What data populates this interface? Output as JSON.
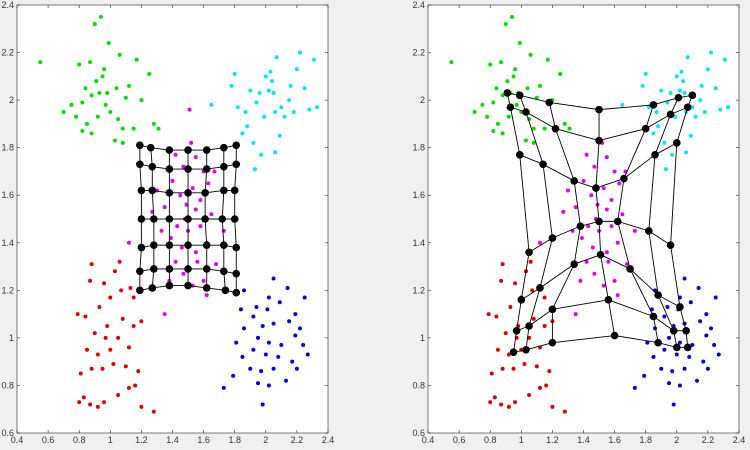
{
  "scatter_series": [
    {
      "name": "cluster-green",
      "color": "#00e000",
      "points": [
        [
          0.55,
          2.16
        ],
        [
          0.9,
          2.32
        ],
        [
          0.94,
          2.35
        ],
        [
          0.99,
          2.24
        ],
        [
          0.8,
          2.15
        ],
        [
          0.87,
          2.16
        ],
        [
          0.96,
          2.13
        ],
        [
          1.06,
          2.19
        ],
        [
          1.17,
          2.17
        ],
        [
          1.25,
          2.11
        ],
        [
          0.7,
          1.95
        ],
        [
          0.75,
          1.98
        ],
        [
          0.82,
          1.99
        ],
        [
          0.88,
          2.02
        ],
        [
          0.93,
          2.03
        ],
        [
          0.98,
          2.03
        ],
        [
          1.04,
          2.05
        ],
        [
          1.1,
          2.01
        ],
        [
          1.2,
          2.0
        ],
        [
          1.28,
          1.9
        ],
        [
          0.78,
          1.93
        ],
        [
          0.85,
          1.9
        ],
        [
          0.92,
          1.93
        ],
        [
          1.0,
          1.95
        ],
        [
          1.08,
          1.88
        ],
        [
          1.15,
          1.88
        ],
        [
          0.82,
          1.87
        ],
        [
          0.88,
          1.86
        ],
        [
          1.03,
          1.83
        ],
        [
          1.08,
          1.82
        ],
        [
          1.31,
          1.88
        ],
        [
          0.95,
          2.1
        ],
        [
          1.12,
          2.06
        ],
        [
          0.84,
          2.05
        ],
        [
          0.97,
          1.98
        ],
        [
          1.05,
          1.92
        ],
        [
          0.91,
          2.08
        ]
      ]
    },
    {
      "name": "cluster-cyan",
      "color": "#00e8f0",
      "points": [
        [
          1.65,
          1.98
        ],
        [
          1.78,
          2.06
        ],
        [
          1.8,
          2.11
        ],
        [
          1.82,
          1.97
        ],
        [
          1.85,
          1.86
        ],
        [
          1.88,
          1.89
        ],
        [
          1.9,
          2.04
        ],
        [
          1.92,
          1.82
        ],
        [
          1.93,
          1.71
        ],
        [
          1.97,
          1.77
        ],
        [
          1.96,
          2.03
        ],
        [
          2.0,
          2.1
        ],
        [
          2.02,
          2.04
        ],
        [
          2.05,
          2.03
        ],
        [
          2.06,
          1.95
        ],
        [
          2.03,
          2.12
        ],
        [
          2.07,
          2.18
        ],
        [
          2.1,
          1.97
        ],
        [
          2.12,
          1.93
        ],
        [
          2.15,
          2.0
        ],
        [
          2.18,
          1.95
        ],
        [
          2.2,
          2.13
        ],
        [
          2.22,
          2.2
        ],
        [
          2.25,
          2.05
        ],
        [
          2.28,
          1.96
        ],
        [
          2.31,
          2.17
        ],
        [
          2.33,
          1.97
        ],
        [
          2.06,
          1.78
        ],
        [
          2.09,
          1.85
        ],
        [
          1.99,
          1.93
        ],
        [
          2.16,
          2.06
        ],
        [
          1.94,
          1.99
        ],
        [
          2.04,
          2.08
        ],
        [
          1.87,
          1.95
        ]
      ]
    },
    {
      "name": "cluster-magenta",
      "color": "#e800e8",
      "points": [
        [
          1.51,
          1.96
        ],
        [
          1.12,
          1.4
        ],
        [
          1.35,
          1.1
        ],
        [
          1.62,
          1.18
        ],
        [
          1.52,
          1.82
        ],
        [
          1.42,
          1.77
        ],
        [
          1.55,
          1.76
        ],
        [
          1.47,
          1.72
        ],
        [
          1.6,
          1.7
        ],
        [
          1.67,
          1.7
        ],
        [
          1.4,
          1.66
        ],
        [
          1.53,
          1.63
        ],
        [
          1.63,
          1.65
        ],
        [
          1.3,
          1.62
        ],
        [
          1.45,
          1.6
        ],
        [
          1.58,
          1.58
        ],
        [
          1.35,
          1.55
        ],
        [
          1.48,
          1.5
        ],
        [
          1.55,
          1.54
        ],
        [
          1.65,
          1.52
        ],
        [
          1.27,
          1.53
        ],
        [
          1.43,
          1.47
        ],
        [
          1.5,
          1.45
        ],
        [
          1.58,
          1.47
        ],
        [
          1.73,
          1.45
        ],
        [
          1.39,
          1.42
        ],
        [
          1.46,
          1.38
        ],
        [
          1.55,
          1.36
        ],
        [
          1.42,
          1.32
        ],
        [
          1.56,
          1.32
        ],
        [
          1.68,
          1.31
        ],
        [
          1.38,
          1.24
        ],
        [
          1.47,
          1.27
        ],
        [
          1.53,
          1.22
        ],
        [
          1.6,
          1.24
        ],
        [
          1.33,
          1.45
        ],
        [
          1.62,
          1.4
        ],
        [
          1.49,
          1.56
        ]
      ]
    },
    {
      "name": "cluster-red",
      "color": "#e00000",
      "points": [
        [
          1.28,
          0.69
        ],
        [
          1.2,
          0.71
        ],
        [
          0.8,
          0.73
        ],
        [
          0.87,
          0.72
        ],
        [
          0.92,
          0.71
        ],
        [
          0.96,
          0.73
        ],
        [
          0.83,
          0.75
        ],
        [
          1.05,
          0.76
        ],
        [
          1.12,
          0.79
        ],
        [
          1.16,
          0.8
        ],
        [
          0.81,
          0.85
        ],
        [
          0.88,
          0.87
        ],
        [
          0.95,
          0.87
        ],
        [
          1.02,
          0.89
        ],
        [
          1.1,
          0.88
        ],
        [
          1.18,
          0.86
        ],
        [
          0.85,
          0.95
        ],
        [
          0.92,
          0.93
        ],
        [
          1.0,
          0.95
        ],
        [
          1.05,
          1.0
        ],
        [
          1.12,
          0.96
        ],
        [
          0.9,
          1.02
        ],
        [
          0.97,
          1.0
        ],
        [
          1.08,
          1.08
        ],
        [
          1.15,
          1.05
        ],
        [
          1.2,
          1.07
        ],
        [
          0.79,
          1.1
        ],
        [
          0.84,
          1.09
        ],
        [
          0.93,
          1.13
        ],
        [
          1.0,
          1.17
        ],
        [
          1.07,
          1.2
        ],
        [
          1.13,
          1.21
        ],
        [
          0.96,
          1.23
        ],
        [
          1.03,
          1.28
        ],
        [
          1.06,
          1.32
        ],
        [
          0.88,
          1.31
        ],
        [
          0.87,
          1.24
        ],
        [
          1.15,
          1.17
        ],
        [
          0.98,
          1.05
        ]
      ]
    },
    {
      "name": "cluster-blue",
      "color": "#0000d8",
      "points": [
        [
          1.73,
          0.79
        ],
        [
          1.79,
          0.84
        ],
        [
          1.98,
          0.72
        ],
        [
          2.02,
          0.8
        ],
        [
          1.95,
          0.81
        ],
        [
          2.13,
          0.82
        ],
        [
          1.9,
          0.87
        ],
        [
          1.97,
          0.86
        ],
        [
          2.05,
          0.87
        ],
        [
          2.2,
          0.87
        ],
        [
          1.85,
          0.92
        ],
        [
          1.92,
          0.95
        ],
        [
          2.0,
          0.93
        ],
        [
          2.08,
          0.92
        ],
        [
          2.17,
          0.9
        ],
        [
          2.27,
          0.93
        ],
        [
          1.81,
          0.98
        ],
        [
          1.95,
          1.0
        ],
        [
          2.02,
          0.98
        ],
        [
          2.1,
          0.97
        ],
        [
          2.19,
          1.01
        ],
        [
          2.24,
          0.97
        ],
        [
          1.86,
          1.04
        ],
        [
          1.98,
          1.05
        ],
        [
          2.05,
          1.06
        ],
        [
          2.15,
          1.07
        ],
        [
          2.22,
          1.04
        ],
        [
          1.84,
          1.12
        ],
        [
          1.92,
          1.09
        ],
        [
          2.01,
          1.12
        ],
        [
          2.09,
          1.15
        ],
        [
          2.19,
          1.1
        ],
        [
          1.86,
          1.2
        ],
        [
          2.02,
          1.17
        ],
        [
          2.05,
          1.25
        ],
        [
          2.14,
          1.21
        ],
        [
          2.25,
          1.17
        ],
        [
          1.94,
          1.13
        ]
      ]
    }
  ],
  "chart_data": [
    {
      "type": "scatter",
      "title": "",
      "xlabel": "",
      "ylabel": "",
      "xlim": [
        0.4,
        2.4
      ],
      "ylim": [
        0.6,
        2.4
      ],
      "xticks": [
        "0.4",
        "0.6",
        "0.8",
        "1",
        "1.2",
        "1.4",
        "1.6",
        "1.8",
        "2",
        "2.2",
        "2.4"
      ],
      "yticks": [
        "0.6",
        "0.8",
        "1",
        "1.2",
        "1.4",
        "1.6",
        "1.8",
        "2",
        "2.2",
        "2.4"
      ],
      "series_ref": "scatter_series",
      "grid_color": "#000000",
      "som_grid": [
        [
          [
            1.19,
            1.81
          ],
          [
            1.26,
            1.8
          ],
          [
            1.38,
            1.79
          ],
          [
            1.5,
            1.79
          ],
          [
            1.62,
            1.79
          ],
          [
            1.73,
            1.8
          ],
          [
            1.81,
            1.81
          ]
        ],
        [
          [
            1.19,
            1.73
          ],
          [
            1.27,
            1.72
          ],
          [
            1.38,
            1.71
          ],
          [
            1.5,
            1.71
          ],
          [
            1.62,
            1.71
          ],
          [
            1.73,
            1.72
          ],
          [
            1.81,
            1.73
          ]
        ],
        [
          [
            1.2,
            1.62
          ],
          [
            1.27,
            1.62
          ],
          [
            1.38,
            1.61
          ],
          [
            1.5,
            1.61
          ],
          [
            1.61,
            1.61
          ],
          [
            1.73,
            1.62
          ],
          [
            1.8,
            1.62
          ]
        ],
        [
          [
            1.2,
            1.5
          ],
          [
            1.28,
            1.5
          ],
          [
            1.38,
            1.5
          ],
          [
            1.5,
            1.5
          ],
          [
            1.61,
            1.5
          ],
          [
            1.72,
            1.5
          ],
          [
            1.8,
            1.5
          ]
        ],
        [
          [
            1.2,
            1.38
          ],
          [
            1.28,
            1.39
          ],
          [
            1.38,
            1.39
          ],
          [
            1.5,
            1.39
          ],
          [
            1.62,
            1.39
          ],
          [
            1.73,
            1.39
          ],
          [
            1.81,
            1.38
          ]
        ],
        [
          [
            1.19,
            1.28
          ],
          [
            1.28,
            1.29
          ],
          [
            1.38,
            1.29
          ],
          [
            1.5,
            1.29
          ],
          [
            1.62,
            1.29
          ],
          [
            1.73,
            1.28
          ],
          [
            1.81,
            1.27
          ]
        ],
        [
          [
            1.19,
            1.2
          ],
          [
            1.27,
            1.21
          ],
          [
            1.38,
            1.22
          ],
          [
            1.5,
            1.22
          ],
          [
            1.62,
            1.21
          ],
          [
            1.74,
            1.2
          ],
          [
            1.81,
            1.19
          ]
        ]
      ]
    },
    {
      "type": "scatter",
      "title": "",
      "xlabel": "",
      "ylabel": "",
      "xlim": [
        0.4,
        2.4
      ],
      "ylim": [
        0.6,
        2.4
      ],
      "xticks": [
        "0.4",
        "0.6",
        "0.8",
        "1",
        "1.2",
        "1.4",
        "1.6",
        "1.8",
        "2",
        "2.2",
        "2.4"
      ],
      "yticks": [
        "0.6",
        "0.8",
        "1",
        "1.2",
        "1.4",
        "1.6",
        "1.8",
        "2",
        "2.2",
        "2.4"
      ],
      "series_ref": "scatter_series",
      "grid_color": "#000000",
      "som_grid": [
        [
          [
            0.91,
            2.03
          ],
          [
            0.99,
            2.02
          ],
          [
            1.18,
            1.99
          ],
          [
            1.5,
            1.96
          ],
          [
            1.85,
            1.98
          ],
          [
            2.01,
            2.01
          ],
          [
            2.1,
            2.02
          ]
        ],
        [
          [
            0.93,
            1.97
          ],
          [
            1.03,
            1.95
          ],
          [
            1.22,
            1.88
          ],
          [
            1.5,
            1.83
          ],
          [
            1.8,
            1.88
          ],
          [
            1.96,
            1.94
          ],
          [
            2.07,
            1.97
          ]
        ],
        [
          [
            0.99,
            1.77
          ],
          [
            1.14,
            1.73
          ],
          [
            1.34,
            1.66
          ],
          [
            1.48,
            1.63
          ],
          [
            1.66,
            1.67
          ],
          [
            1.86,
            1.77
          ],
          [
            2.0,
            1.82
          ]
        ],
        [
          [
            1.05,
            1.36
          ],
          [
            1.2,
            1.42
          ],
          [
            1.38,
            1.47
          ],
          [
            1.5,
            1.49
          ],
          [
            1.62,
            1.49
          ],
          [
            1.82,
            1.45
          ],
          [
            1.96,
            1.39
          ]
        ],
        [
          [
            1.0,
            1.16
          ],
          [
            1.12,
            1.21
          ],
          [
            1.34,
            1.31
          ],
          [
            1.51,
            1.35
          ],
          [
            1.7,
            1.29
          ],
          [
            1.88,
            1.18
          ],
          [
            2.02,
            1.13
          ]
        ],
        [
          [
            0.97,
            1.03
          ],
          [
            1.05,
            1.05
          ],
          [
            1.2,
            1.12
          ],
          [
            1.56,
            1.16
          ],
          [
            1.85,
            1.09
          ],
          [
            1.98,
            1.03
          ],
          [
            2.06,
            1.03
          ]
        ],
        [
          [
            0.95,
            0.94
          ],
          [
            1.03,
            0.95
          ],
          [
            1.2,
            0.98
          ],
          [
            1.6,
            1.01
          ],
          [
            1.88,
            0.98
          ],
          [
            2.0,
            0.96
          ],
          [
            2.07,
            0.96
          ]
        ]
      ]
    }
  ]
}
